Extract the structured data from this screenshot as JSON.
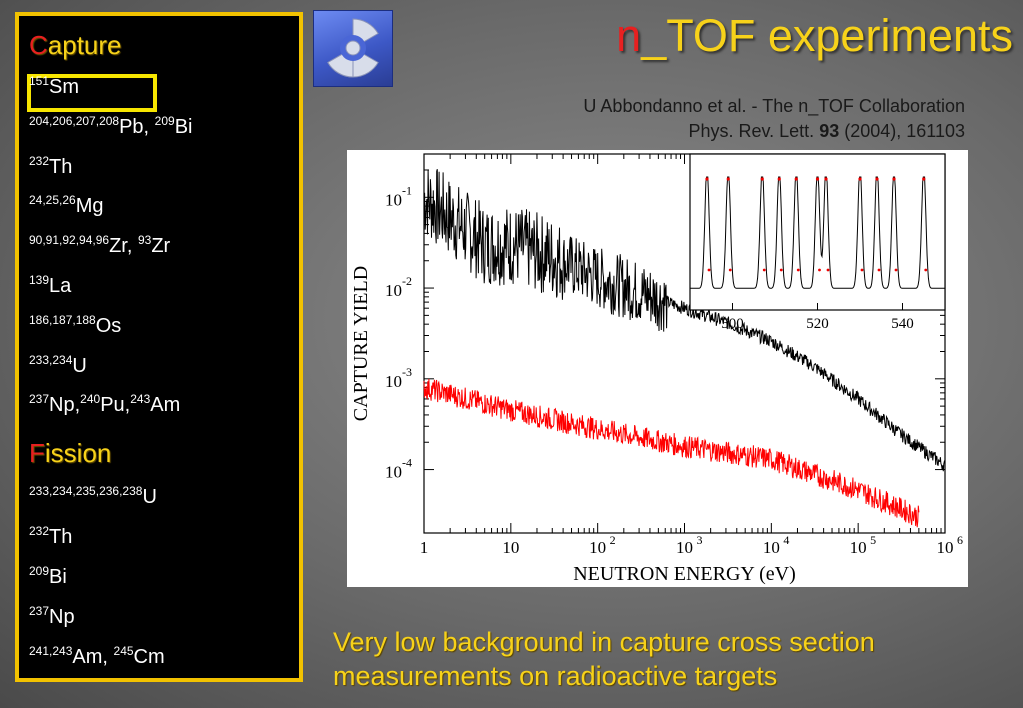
{
  "title": {
    "first": "n",
    "rest": "_TOF experiments"
  },
  "reference": {
    "line1": "U Abbondanno et al. - The n_TOF Collaboration",
    "journal": "Phys. Rev. Lett.",
    "volume": "93",
    "rest": "(2004), 161103"
  },
  "capture": {
    "heading_first": "C",
    "heading_rest": "apture",
    "items": [
      {
        "parts": [
          {
            "sup": "151",
            "el": "Sm"
          }
        ]
      },
      {
        "parts": [
          {
            "sup": "204,206,207,208",
            "el": "Pb, "
          },
          {
            "sup": "209",
            "el": "Bi"
          }
        ]
      },
      {
        "parts": [
          {
            "sup": "232",
            "el": "Th"
          }
        ]
      },
      {
        "parts": [
          {
            "sup": "24,25,26",
            "el": "Mg"
          }
        ]
      },
      {
        "parts": [
          {
            "sup": "90,91,92,94,96",
            "el": "Zr, "
          },
          {
            "sup": "93",
            "el": "Zr"
          }
        ]
      },
      {
        "parts": [
          {
            "sup": "139",
            "el": "La"
          }
        ]
      },
      {
        "parts": [
          {
            "sup": "186,187,188",
            "el": "Os"
          }
        ]
      },
      {
        "parts": [
          {
            "sup": "233,234",
            "el": "U"
          }
        ]
      },
      {
        "parts": [
          {
            "sup": "237",
            "el": "Np,"
          },
          {
            "sup": "240",
            "el": "Pu,"
          },
          {
            "sup": "243",
            "el": "Am"
          }
        ]
      }
    ]
  },
  "fission": {
    "heading_first": "F",
    "heading_rest": "ission",
    "items": [
      {
        "parts": [
          {
            "sup": "233,234,235,236,238",
            "el": "U"
          }
        ]
      },
      {
        "parts": [
          {
            "sup": "232",
            "el": "Th"
          }
        ]
      },
      {
        "parts": [
          {
            "sup": "209",
            "el": "Bi"
          }
        ]
      },
      {
        "parts": [
          {
            "sup": "237",
            "el": "Np"
          }
        ]
      },
      {
        "parts": [
          {
            "sup": "241,243",
            "el": "Am, "
          },
          {
            "sup": "245",
            "el": "Cm"
          }
        ]
      }
    ]
  },
  "chart_data": {
    "type": "line",
    "xlabel": "NEUTRON ENERGY (eV)",
    "ylabel": "CAPTURE YIELD",
    "x_scale": "log",
    "y_scale": "log",
    "xlim": [
      1,
      1000000
    ],
    "ylim": [
      2e-05,
      0.3
    ],
    "x_ticks": [
      {
        "base": "1",
        "exp": ""
      },
      {
        "base": "10",
        "exp": ""
      },
      {
        "base": "10",
        "exp": "2"
      },
      {
        "base": "10",
        "exp": "3"
      },
      {
        "base": "10",
        "exp": "4"
      },
      {
        "base": "10",
        "exp": "5"
      },
      {
        "base": "10",
        "exp": "6"
      }
    ],
    "y_ticks": [
      {
        "base": "10",
        "exp": "-1"
      },
      {
        "base": "10",
        "exp": "-2"
      },
      {
        "base": "10",
        "exp": "-3"
      },
      {
        "base": "10",
        "exp": "-4"
      }
    ],
    "series": [
      {
        "color": "#000000",
        "points": [
          [
            1,
            0.1
          ],
          [
            2,
            0.06
          ],
          [
            5,
            0.03
          ],
          [
            10,
            0.03
          ],
          [
            30,
            0.022
          ],
          [
            100,
            0.013
          ],
          [
            300,
            0.009
          ],
          [
            1000,
            0.006
          ],
          [
            3000,
            0.0042
          ],
          [
            10000,
            0.0026
          ],
          [
            30000,
            0.0014
          ],
          [
            100000,
            0.0006
          ],
          [
            300000,
            0.00025
          ],
          [
            1000000,
            0.00011
          ]
        ]
      },
      {
        "color": "#ff0000",
        "points": [
          [
            1,
            0.0008
          ],
          [
            10,
            0.00045
          ],
          [
            100,
            0.00028
          ],
          [
            1000,
            0.00018
          ],
          [
            10000,
            0.00013
          ],
          [
            100000,
            6e-05
          ],
          [
            500000,
            3e-05
          ]
        ]
      }
    ],
    "inset": {
      "x_ticks": [
        "500",
        "520",
        "540"
      ],
      "xlim": [
        490,
        550
      ]
    }
  },
  "caption": {
    "line1": "Very low background in capture cross section",
    "line2": "measurements on radioactive targets"
  },
  "colors": {
    "accent": "#f7d21a",
    "highlight": "#e82020",
    "frame": "#f2c200"
  }
}
